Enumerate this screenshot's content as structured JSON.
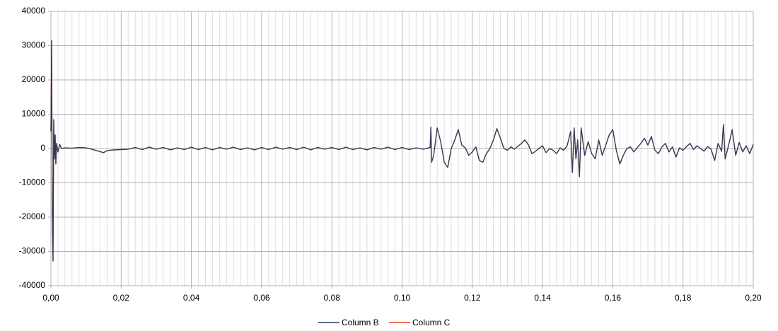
{
  "chart_data": {
    "type": "line",
    "x": [
      0,
      0.0002,
      0.0004,
      0.0006,
      0.0008,
      0.001,
      0.0012,
      0.0014,
      0.0016,
      0.002,
      0.0025,
      0.003,
      0.004,
      0.006,
      0.008,
      0.01,
      0.012,
      0.014,
      0.015,
      0.016,
      0.018,
      0.02,
      0.022,
      0.024,
      0.026,
      0.028,
      0.03,
      0.032,
      0.034,
      0.036,
      0.038,
      0.04,
      0.042,
      0.044,
      0.046,
      0.048,
      0.05,
      0.052,
      0.054,
      0.056,
      0.058,
      0.06,
      0.062,
      0.064,
      0.066,
      0.068,
      0.07,
      0.072,
      0.074,
      0.076,
      0.078,
      0.08,
      0.082,
      0.084,
      0.086,
      0.088,
      0.09,
      0.092,
      0.094,
      0.096,
      0.098,
      0.1,
      0.102,
      0.104,
      0.106,
      0.108,
      0.1082,
      0.1084,
      0.109,
      0.11,
      0.111,
      0.112,
      0.113,
      0.114,
      0.115,
      0.116,
      0.117,
      0.118,
      0.119,
      0.12,
      0.121,
      0.122,
      0.123,
      0.124,
      0.125,
      0.126,
      0.127,
      0.128,
      0.129,
      0.13,
      0.131,
      0.132,
      0.134,
      0.135,
      0.136,
      0.137,
      0.138,
      0.14,
      0.141,
      0.142,
      0.143,
      0.144,
      0.145,
      0.146,
      0.147,
      0.148,
      0.1485,
      0.149,
      0.1495,
      0.15,
      0.1505,
      0.151,
      0.152,
      0.153,
      0.154,
      0.155,
      0.156,
      0.157,
      0.158,
      0.159,
      0.16,
      0.161,
      0.162,
      0.163,
      0.164,
      0.165,
      0.166,
      0.167,
      0.168,
      0.169,
      0.17,
      0.171,
      0.172,
      0.173,
      0.174,
      0.175,
      0.176,
      0.177,
      0.178,
      0.179,
      0.18,
      0.181,
      0.182,
      0.183,
      0.184,
      0.186,
      0.187,
      0.188,
      0.189,
      0.19,
      0.191,
      0.1915,
      0.192,
      0.193,
      0.194,
      0.195,
      0.196,
      0.197,
      0.198,
      0.199,
      0.2
    ],
    "series": [
      {
        "name": "Column B",
        "color": "#2e3a5c",
        "values": [
          5000,
          31500,
          -19000,
          -32800,
          8400,
          -3000,
          4000,
          -4500,
          1500,
          -1000,
          1200,
          0,
          200,
          100,
          300,
          200,
          -300,
          -900,
          -1200,
          -600,
          -400,
          -300,
          -200,
          300,
          -300,
          400,
          -200,
          300,
          -400,
          200,
          -300,
          400,
          -300,
          300,
          -400,
          300,
          -200,
          400,
          -300,
          200,
          -400,
          300,
          -300,
          400,
          -200,
          300,
          -300,
          400,
          -400,
          300,
          -200,
          300,
          -300,
          400,
          -300,
          200,
          -400,
          300,
          -200,
          400,
          -300,
          300,
          -300,
          200,
          -200,
          300,
          6200,
          -4000,
          -2000,
          6000,
          2000,
          -4000,
          -5500,
          0,
          2500,
          5500,
          1000,
          200,
          -2000,
          -1000,
          500,
          -3500,
          -4000,
          -1500,
          0,
          2500,
          5800,
          3000,
          0,
          -500,
          500,
          -200,
          1500,
          2500,
          1000,
          -1500,
          -800,
          800,
          -1200,
          0,
          -500,
          -1500,
          200,
          -500,
          800,
          5000,
          -7000,
          6000,
          -3000,
          2500,
          -8200,
          6000,
          -2000,
          2000,
          -1500,
          -3000,
          2500,
          -2000,
          1000,
          4000,
          5500,
          -500,
          -4500,
          -2000,
          0,
          500,
          -1000,
          300,
          1500,
          3000,
          1000,
          3500,
          -500,
          -1500,
          500,
          1500,
          -1000,
          500,
          -2500,
          200,
          -500,
          600,
          1500,
          -300,
          800,
          -800,
          600,
          -200,
          -3500,
          1500,
          -800,
          7000,
          -3000,
          1000,
          5500,
          -2000,
          1800,
          -1000,
          800,
          -1500,
          1200
        ]
      },
      {
        "name": "Column C",
        "color": "#ff420e",
        "values": [
          5000,
          31500,
          -19000,
          -32800,
          8400,
          -3000,
          4000,
          -4500,
          1500,
          -1000,
          1200,
          0,
          200,
          100,
          300,
          200,
          -300,
          -900,
          -1200,
          -600,
          -400,
          -300,
          -200,
          300,
          -300,
          400,
          -200,
          300,
          -400,
          200,
          -300,
          400,
          -300,
          300,
          -400,
          300,
          -200,
          400,
          -300,
          200,
          -400,
          300,
          -300,
          400,
          -200,
          300,
          -300,
          400,
          -400,
          300,
          -200,
          300,
          -300,
          400,
          -300,
          200,
          -400,
          300,
          -200,
          400,
          -300,
          300,
          -300,
          200,
          -200,
          300,
          6200,
          -4000,
          -2000,
          6000,
          2000,
          -4000,
          -5500,
          0,
          2500,
          5500,
          1000,
          200,
          -2000,
          -1000,
          500,
          -3500,
          -4000,
          -1500,
          0,
          2500,
          5800,
          3000,
          0,
          -500,
          500,
          -200,
          1500,
          2500,
          1000,
          -1500,
          -800,
          800,
          -1200,
          0,
          -500,
          -1500,
          200,
          -500,
          800,
          5000,
          -7000,
          6000,
          -3000,
          2500,
          -8200,
          6000,
          -2000,
          2000,
          -1500,
          -3000,
          2500,
          -2000,
          1000,
          4000,
          5500,
          -500,
          -4500,
          -2000,
          0,
          500,
          -1000,
          300,
          1500,
          3000,
          1000,
          3500,
          -500,
          -1500,
          500,
          1500,
          -1000,
          500,
          -2500,
          200,
          -500,
          600,
          1500,
          -300,
          800,
          -800,
          600,
          -200,
          -3500,
          1500,
          -800,
          7000,
          -3000,
          1000,
          5500,
          -2000,
          1800,
          -1000,
          800,
          -1500,
          1200
        ]
      }
    ],
    "xlim": [
      0,
      0.2
    ],
    "xticks": [
      {
        "value": 0,
        "label": "0,00"
      },
      {
        "value": 0.02,
        "label": "0,02"
      },
      {
        "value": 0.04,
        "label": "0,04"
      },
      {
        "value": 0.06,
        "label": "0,06"
      },
      {
        "value": 0.08,
        "label": "0,08"
      },
      {
        "value": 0.1,
        "label": "0,10"
      },
      {
        "value": 0.12,
        "label": "0,12"
      },
      {
        "value": 0.14,
        "label": "0,14"
      },
      {
        "value": 0.16,
        "label": "0,16"
      },
      {
        "value": 0.18,
        "label": "0,18"
      },
      {
        "value": 0.2,
        "label": "0,20"
      }
    ],
    "ylim": [
      -40000,
      40000
    ],
    "yticks": [
      -40000,
      -30000,
      -20000,
      -10000,
      0,
      10000,
      20000,
      30000,
      40000
    ],
    "grid": true,
    "x_minor_divisions": 10,
    "legend": "bottom"
  }
}
